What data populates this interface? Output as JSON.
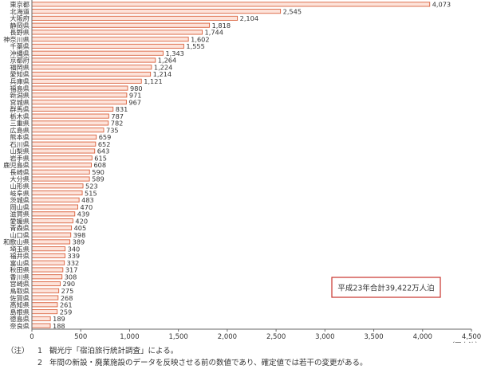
{
  "chart_data": {
    "type": "bar",
    "orientation": "horizontal",
    "categories": [
      "東京都",
      "北海道",
      "大阪府",
      "静岡県",
      "長野県",
      "神奈川県",
      "千葉県",
      "沖縄県",
      "京都府",
      "福岡県",
      "愛知県",
      "兵庫県",
      "福島県",
      "新潟県",
      "宮城県",
      "群馬県",
      "栃木県",
      "三重県",
      "広島県",
      "熊本県",
      "石川県",
      "山梨県",
      "岩手県",
      "鹿児島県",
      "長崎県",
      "大分県",
      "山形県",
      "岐阜県",
      "茨城県",
      "岡山県",
      "滋賀県",
      "愛媛県",
      "青森県",
      "山口県",
      "和歌山県",
      "埼玉県",
      "福井県",
      "富山県",
      "秋田県",
      "香川県",
      "宮崎県",
      "鳥取県",
      "佐賀県",
      "高知県",
      "島根県",
      "徳島県",
      "奈良県"
    ],
    "values": [
      4073,
      2545,
      2104,
      1818,
      1744,
      1602,
      1555,
      1343,
      1264,
      1224,
      1214,
      1121,
      980,
      971,
      967,
      831,
      787,
      782,
      735,
      659,
      652,
      643,
      615,
      608,
      590,
      589,
      523,
      515,
      483,
      470,
      439,
      420,
      405,
      398,
      389,
      340,
      339,
      332,
      317,
      308,
      290,
      275,
      268,
      261,
      259,
      189,
      188
    ],
    "value_labels": [
      "4,073",
      "2,545",
      "2,104",
      "1,818",
      "1,744",
      "1,602",
      "1,555",
      "1,343",
      "1,264",
      "1,224",
      "1,214",
      "1,121",
      "980",
      "971",
      "967",
      "831",
      "787",
      "782",
      "735",
      "659",
      "652",
      "643",
      "615",
      "608",
      "590",
      "589",
      "523",
      "515",
      "483",
      "470",
      "439",
      "420",
      "405",
      "398",
      "389",
      "340",
      "339",
      "332",
      "317",
      "308",
      "290",
      "275",
      "268",
      "261",
      "259",
      "189",
      "188"
    ],
    "x_ticks": [
      0,
      500,
      1000,
      1500,
      2000,
      2500,
      3000,
      3500,
      4000,
      4500
    ],
    "x_tick_labels": [
      "0",
      "500",
      "1,000",
      "1,500",
      "2,000",
      "2,500",
      "3,000",
      "3,500",
      "4,000",
      "4,500"
    ],
    "xlim": [
      0,
      4500
    ],
    "x_unit": "（万人泊）",
    "annotation": "平成23年合計39,422万人泊",
    "grid": false,
    "colors": {
      "bar_fill": "#fde3da",
      "bar_stroke": "#d9603c",
      "axis": "#666666",
      "annotation_border": "#c8322c"
    }
  },
  "notes": [
    {
      "lead": "（注）",
      "num": "1",
      "text": "観光庁「宿泊旅行統計調査」による。"
    },
    {
      "lead": "",
      "num": "2",
      "text": "年間の新設・廃業施設のデータを反映させる前の数値であり、確定値では若干の変更がある。"
    }
  ]
}
